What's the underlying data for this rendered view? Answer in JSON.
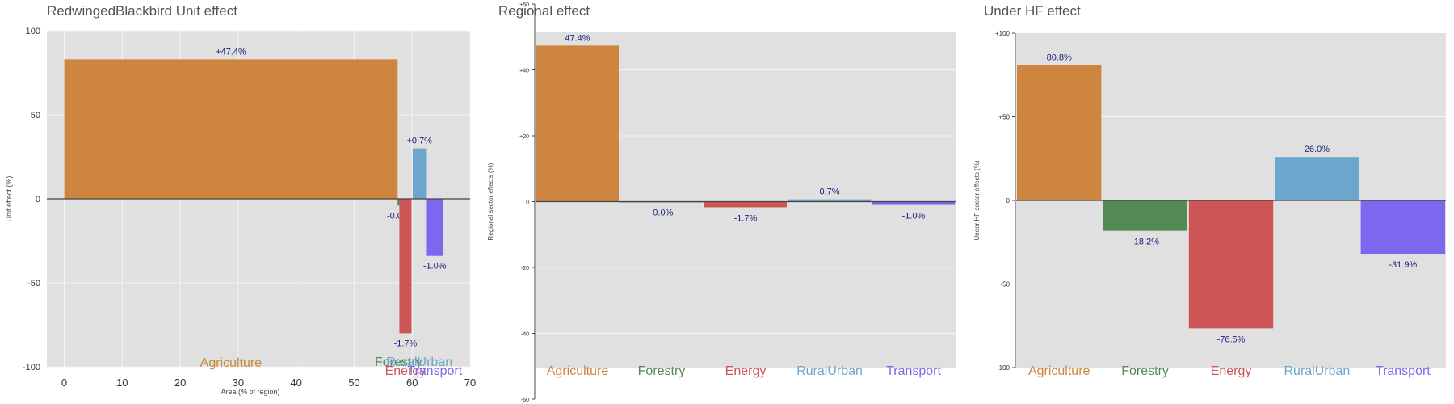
{
  "chart_data": [
    {
      "type": "bar",
      "variant": "variable-width",
      "title": "RedwingedBlackbird Unit effect",
      "xlabel": "Area (% of region)",
      "ylabel": "Unit effect (%)",
      "xlim": [
        -3,
        70
      ],
      "ylim": [
        -100,
        100
      ],
      "xticks": [
        0,
        10,
        20,
        30,
        40,
        50,
        60,
        70
      ],
      "yticks": [
        -100,
        -50,
        0,
        50,
        100
      ],
      "ytick_labels": [
        "-100",
        "-50",
        "0",
        "50",
        "100"
      ],
      "grid": true,
      "bars": [
        {
          "category": "Agriculture",
          "x0": 0,
          "x1": 57.5,
          "value": 83,
          "label": "+47.4%",
          "color": "#cd853f"
        },
        {
          "category": "Forestry",
          "x0": 57.5,
          "x1": 57.8,
          "value": -4,
          "label": "-0.0%",
          "color": "#548b54"
        },
        {
          "category": "Energy",
          "x0": 57.8,
          "x1": 59.9,
          "value": -80,
          "label": "-1.7%",
          "color": "#cd5555"
        },
        {
          "category": "RuralUrban",
          "x0": 60.1,
          "x1": 62.4,
          "value": 30,
          "label": "+0.7%",
          "color": "#6ca6cd"
        },
        {
          "category": "Transport",
          "x0": 62.4,
          "x1": 65.4,
          "value": -34,
          "label": "-1.0%",
          "color": "#7b68ee"
        }
      ]
    },
    {
      "type": "bar",
      "title": "Regional effect",
      "xlabel": "",
      "ylabel": "Regional sector effects (%)",
      "ylim": [
        -60,
        60
      ],
      "yticks": [
        -60,
        -40,
        -20,
        0,
        20,
        40,
        60
      ],
      "ytick_labels": [
        "-60",
        "-40",
        "-20",
        "0",
        "+20",
        "+40",
        "+60"
      ],
      "categories": [
        "Agriculture",
        "Forestry",
        "Energy",
        "RuralUrban",
        "Transport"
      ],
      "values": [
        47.4,
        -0.05,
        -1.7,
        0.7,
        -1.0
      ],
      "labels": [
        "47.4%",
        "-0.0%",
        "-1.7%",
        "0.7%",
        "-1.0%"
      ],
      "colors": [
        "#cd853f",
        "#548b54",
        "#cd5555",
        "#6ca6cd",
        "#7b68ee"
      ],
      "grid": true
    },
    {
      "type": "bar",
      "title": "Under HF effect",
      "xlabel": "",
      "ylabel": "Under HF sector effects (%)",
      "ylim": [
        -100,
        100
      ],
      "yticks": [
        -100,
        -50,
        0,
        50,
        100
      ],
      "ytick_labels": [
        "-100",
        "-50",
        "0",
        "+50",
        "+100"
      ],
      "categories": [
        "Agriculture",
        "Forestry",
        "Energy",
        "RuralUrban",
        "Transport"
      ],
      "values": [
        80.8,
        -18.2,
        -76.5,
        26.0,
        -31.9
      ],
      "labels": [
        "80.8%",
        "-18.2%",
        "-76.5%",
        "26.0%",
        "-31.9%"
      ],
      "colors": [
        "#cd853f",
        "#548b54",
        "#cd5555",
        "#6ca6cd",
        "#7b68ee"
      ],
      "grid": true
    }
  ]
}
